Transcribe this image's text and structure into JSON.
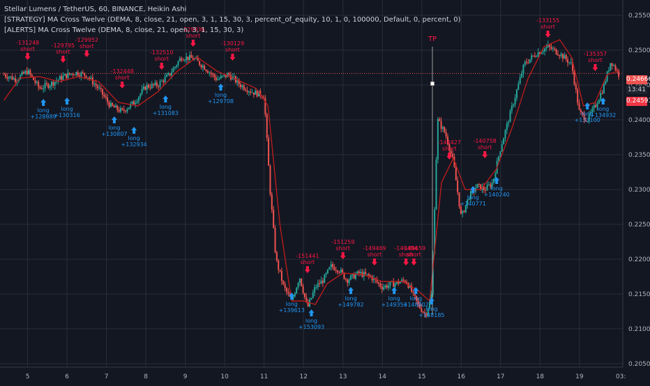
{
  "legend": {
    "title": "Stellar Lumens / TetherUS, 60, BINANCE, Heikin Ashi",
    "strategy": "[STRATEGY] MA Cross Twelve (DEMA, 8, close, 21, open, 3, 1, 15, 30, 3, percent_of_equity, 10, 1, 0, 100000, Default, 0, percent, 0)",
    "alerts": "[ALERTS] MA Cross Twelve (DEMA, 8, close, 21, open, 3, 1, 15, 30, 3)"
  },
  "price_tags": {
    "last": "0.24666",
    "timer": "13:41",
    "prev": "0.24591"
  },
  "colors": {
    "background": "#131722",
    "grid": "#2a2e39",
    "axis_text": "#b2b5be",
    "bull_candle": "#26a69a",
    "bear_candle": "#ef5350",
    "ma_line": "#b71c1c",
    "long_marker": "#2196f3",
    "short_marker": "#ff1744",
    "last_price_tag": "#ef5350",
    "prev_price_tag": "#f23645"
  },
  "chart_data": {
    "type": "candlestick",
    "title": "Stellar Lumens / TetherUS, 60, BINANCE, Heikin Ashi",
    "x_ticks": [
      "5",
      "6",
      "7",
      "8",
      "9",
      "10",
      "11",
      "12",
      "13",
      "14",
      "15",
      "16",
      "17",
      "18",
      "19",
      "03:"
    ],
    "y_ticks": [
      "0.25500",
      "0.25000",
      "0.24500",
      "0.24000",
      "0.23500",
      "0.23000",
      "0.22500",
      "0.22000",
      "0.21500",
      "0.21000",
      "0.20500"
    ],
    "ylim": [
      0.2045,
      0.2572
    ],
    "xlim": [
      4.3,
      20.1
    ],
    "price_path": [
      [
        4.4,
        0.2465
      ],
      [
        4.7,
        0.2458
      ],
      [
        5.0,
        0.247
      ],
      [
        5.3,
        0.2445
      ],
      [
        5.6,
        0.2452
      ],
      [
        5.9,
        0.2462
      ],
      [
        6.2,
        0.2468
      ],
      [
        6.5,
        0.2464
      ],
      [
        6.8,
        0.2445
      ],
      [
        7.1,
        0.242
      ],
      [
        7.4,
        0.2412
      ],
      [
        7.7,
        0.2425
      ],
      [
        8.0,
        0.2448
      ],
      [
        8.3,
        0.245
      ],
      [
        8.6,
        0.2465
      ],
      [
        8.9,
        0.249
      ],
      [
        9.2,
        0.2488
      ],
      [
        9.5,
        0.2475
      ],
      [
        9.8,
        0.2458
      ],
      [
        10.1,
        0.2465
      ],
      [
        10.4,
        0.245
      ],
      [
        10.7,
        0.244
      ],
      [
        11.0,
        0.2435
      ],
      [
        11.15,
        0.23
      ],
      [
        11.3,
        0.22
      ],
      [
        11.5,
        0.216
      ],
      [
        11.7,
        0.214
      ],
      [
        11.9,
        0.2175
      ],
      [
        12.1,
        0.213
      ],
      [
        12.3,
        0.216
      ],
      [
        12.5,
        0.217
      ],
      [
        12.7,
        0.219
      ],
      [
        12.9,
        0.2185
      ],
      [
        13.1,
        0.217
      ],
      [
        13.4,
        0.218
      ],
      [
        13.7,
        0.2175
      ],
      [
        14.0,
        0.216
      ],
      [
        14.3,
        0.2165
      ],
      [
        14.6,
        0.217
      ],
      [
        14.9,
        0.2135
      ],
      [
        15.1,
        0.212
      ],
      [
        15.25,
        0.215
      ],
      [
        15.4,
        0.24
      ],
      [
        15.6,
        0.238
      ],
      [
        15.8,
        0.234
      ],
      [
        16.0,
        0.226
      ],
      [
        16.2,
        0.229
      ],
      [
        16.4,
        0.2305
      ],
      [
        16.6,
        0.23
      ],
      [
        16.8,
        0.231
      ],
      [
        17.0,
        0.236
      ],
      [
        17.3,
        0.242
      ],
      [
        17.6,
        0.248
      ],
      [
        17.9,
        0.2495
      ],
      [
        18.2,
        0.2505
      ],
      [
        18.5,
        0.2495
      ],
      [
        18.8,
        0.248
      ],
      [
        19.0,
        0.241
      ],
      [
        19.2,
        0.24
      ],
      [
        19.4,
        0.242
      ],
      [
        19.6,
        0.2445
      ],
      [
        19.8,
        0.2485
      ],
      [
        20.0,
        0.2465
      ]
    ],
    "ma_path": [
      [
        4.4,
        0.2428
      ],
      [
        4.8,
        0.246
      ],
      [
        5.3,
        0.2462
      ],
      [
        5.8,
        0.2455
      ],
      [
        6.3,
        0.2462
      ],
      [
        6.8,
        0.2455
      ],
      [
        7.3,
        0.2425
      ],
      [
        7.8,
        0.242
      ],
      [
        8.3,
        0.244
      ],
      [
        8.8,
        0.247
      ],
      [
        9.3,
        0.249
      ],
      [
        9.8,
        0.247
      ],
      [
        10.3,
        0.2458
      ],
      [
        10.8,
        0.2445
      ],
      [
        11.1,
        0.242
      ],
      [
        11.4,
        0.225
      ],
      [
        11.7,
        0.214
      ],
      [
        12.0,
        0.214
      ],
      [
        12.3,
        0.2135
      ],
      [
        12.6,
        0.2165
      ],
      [
        13.0,
        0.218
      ],
      [
        13.5,
        0.2178
      ],
      [
        14.0,
        0.2168
      ],
      [
        14.5,
        0.2168
      ],
      [
        14.9,
        0.2155
      ],
      [
        15.2,
        0.214
      ],
      [
        15.5,
        0.231
      ],
      [
        15.8,
        0.2345
      ],
      [
        16.1,
        0.23
      ],
      [
        16.5,
        0.23
      ],
      [
        16.9,
        0.233
      ],
      [
        17.3,
        0.239
      ],
      [
        17.7,
        0.246
      ],
      [
        18.1,
        0.2505
      ],
      [
        18.5,
        0.2515
      ],
      [
        18.8,
        0.249
      ],
      [
        19.1,
        0.242
      ],
      [
        19.4,
        0.2425
      ],
      [
        19.7,
        0.2465
      ],
      [
        20.0,
        0.247
      ]
    ],
    "signals": [
      {
        "type": "short",
        "label": "short",
        "value": "-131248",
        "x": 5.0,
        "y": 0.2486
      },
      {
        "type": "long",
        "label": "long",
        "value": "+128889",
        "x": 5.4,
        "y": 0.243
      },
      {
        "type": "short",
        "label": "short",
        "value": "-129795",
        "x": 5.9,
        "y": 0.2482
      },
      {
        "type": "long",
        "label": "long",
        "value": "+130316",
        "x": 6.0,
        "y": 0.2432
      },
      {
        "type": "short",
        "label": "short",
        "value": "-129952",
        "x": 6.5,
        "y": 0.249
      },
      {
        "type": "long",
        "label": "long",
        "value": "+130807",
        "x": 7.2,
        "y": 0.2405
      },
      {
        "type": "short",
        "label": "short",
        "value": "-132448",
        "x": 7.4,
        "y": 0.2445
      },
      {
        "type": "long",
        "label": "long",
        "value": "+132934",
        "x": 7.7,
        "y": 0.239
      },
      {
        "type": "short",
        "label": "short",
        "value": "-132510",
        "x": 8.4,
        "y": 0.2472
      },
      {
        "type": "long",
        "label": "long",
        "value": "+131083",
        "x": 8.5,
        "y": 0.2435
      },
      {
        "type": "short",
        "label": "short",
        "value": "-129936",
        "x": 9.2,
        "y": 0.2505
      },
      {
        "type": "long",
        "label": "long",
        "value": "+129708",
        "x": 9.9,
        "y": 0.2452
      },
      {
        "type": "short",
        "label": "short",
        "value": "-130129",
        "x": 10.2,
        "y": 0.2485
      },
      {
        "type": "long",
        "label": "long",
        "value": "+139613",
        "x": 11.7,
        "y": 0.2152
      },
      {
        "type": "short",
        "label": "short",
        "value": "-151441",
        "x": 12.1,
        "y": 0.218
      },
      {
        "type": "long",
        "label": "long",
        "value": "+153093",
        "x": 12.2,
        "y": 0.2128
      },
      {
        "type": "short",
        "label": "short",
        "value": "-151259",
        "x": 13.0,
        "y": 0.22
      },
      {
        "type": "long",
        "label": "long",
        "value": "+149782",
        "x": 13.2,
        "y": 0.216
      },
      {
        "type": "short",
        "label": "short",
        "value": "-149469",
        "x": 13.8,
        "y": 0.2191
      },
      {
        "type": "long",
        "label": "long",
        "value": "+149353",
        "x": 14.3,
        "y": 0.216
      },
      {
        "type": "short",
        "label": "short",
        "value": "-149484",
        "x": 14.6,
        "y": 0.2191
      },
      {
        "type": "short",
        "label": "short",
        "value": "-149659",
        "x": 14.8,
        "y": 0.2191
      },
      {
        "type": "long",
        "label": "long",
        "value": "+148802",
        "x": 14.85,
        "y": 0.216
      },
      {
        "type": "long",
        "label": "long",
        "value": "+148185",
        "x": 15.25,
        "y": 0.2145
      },
      {
        "type": "short",
        "label": "short",
        "value": "-144427",
        "x": 15.7,
        "y": 0.2343
      },
      {
        "type": "long",
        "label": "long",
        "value": "+140771",
        "x": 16.3,
        "y": 0.2305
      },
      {
        "type": "short",
        "label": "short",
        "value": "-140758",
        "x": 16.6,
        "y": 0.2345
      },
      {
        "type": "long",
        "label": "long",
        "value": "+140240",
        "x": 16.9,
        "y": 0.2318
      },
      {
        "type": "short",
        "label": "short",
        "value": "-133155",
        "x": 18.2,
        "y": 0.2518
      },
      {
        "type": "long",
        "label": "long",
        "value": "+133100",
        "x": 19.2,
        "y": 0.2425
      },
      {
        "type": "short",
        "label": "short",
        "value": "-135357",
        "x": 19.4,
        "y": 0.247
      },
      {
        "type": "long",
        "label": "long",
        "value": "+134932",
        "x": 19.6,
        "y": 0.2432
      }
    ],
    "annotations": [
      {
        "text": "TP",
        "x": 15.27,
        "y": 0.2505
      }
    ],
    "tp_line": {
      "x": 15.27,
      "y_top": 0.2505,
      "y_bottom": 0.212,
      "marker_y": 0.2452
    },
    "last_price": 0.24666,
    "grid": true,
    "legend_position": "top-left"
  }
}
